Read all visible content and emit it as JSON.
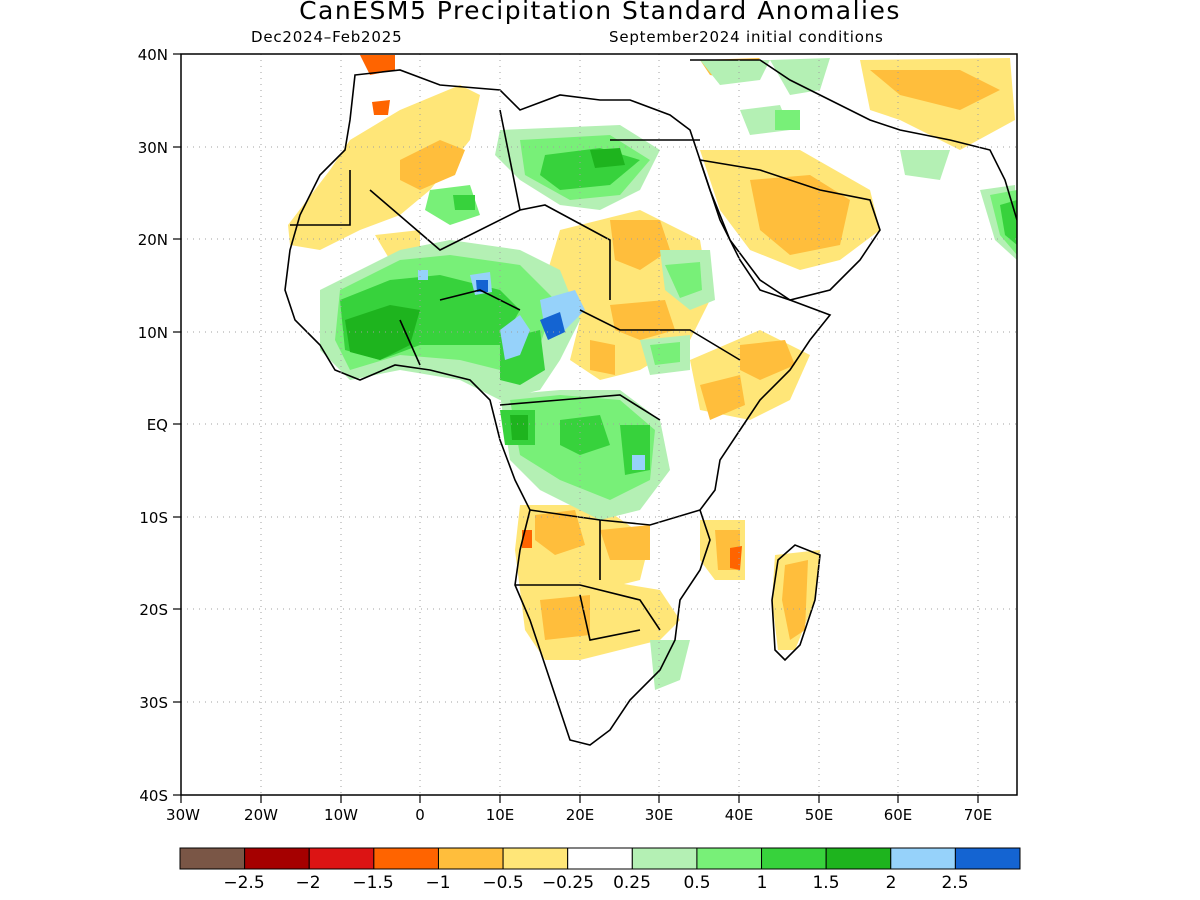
{
  "title": "CanESM5 Precipitation Standard Anomalies",
  "subtitle_left": "Dec2024–Feb2025",
  "subtitle_right": "September2024 initial conditions",
  "lat_labels": [
    "40N",
    "30N",
    "20N",
    "10N",
    "EQ",
    "10S",
    "20S",
    "30S",
    "40S"
  ],
  "lon_labels": [
    "30W",
    "20W",
    "10W",
    "0",
    "10E",
    "20E",
    "30E",
    "40E",
    "50E",
    "60E",
    "70E"
  ],
  "colorbar": {
    "colors": [
      "#7a5646",
      "#a50000",
      "#dc1414",
      "#ff6400",
      "#ffbe3c",
      "#ffe678",
      "#ffffff",
      "#b4f0b4",
      "#78f078",
      "#37d23c",
      "#1eb41e",
      "#96d2fa",
      "#1464d2"
    ],
    "labels": [
      "−2.5",
      "−2",
      "−1.5",
      "−1",
      "−0.5",
      "−0.25",
      "0.25",
      "0.5",
      "1",
      "1.5",
      "2",
      "2.5"
    ]
  },
  "map": {
    "lon_range": [
      -30,
      75
    ],
    "lat_range": [
      -40,
      40
    ],
    "grid": "dotted"
  }
}
